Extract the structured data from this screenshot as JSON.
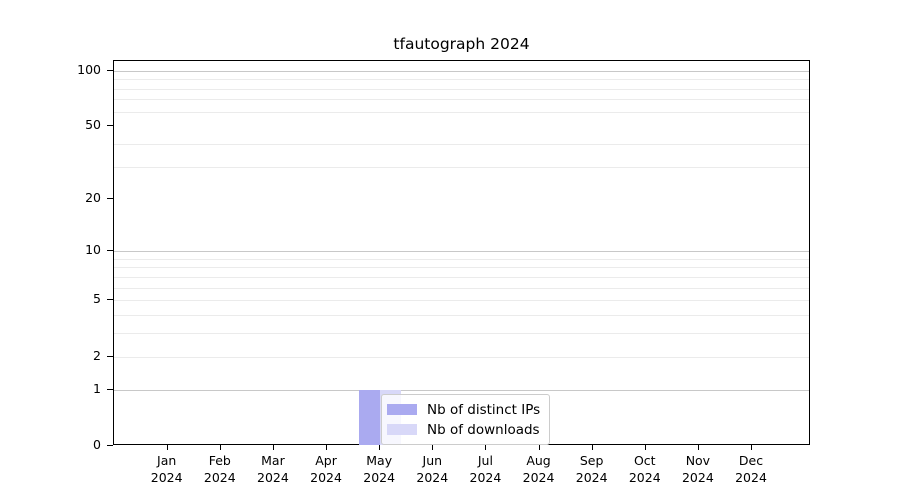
{
  "chart_data": {
    "type": "bar",
    "title": "tfautograph 2024",
    "categories": [
      "Jan 2024",
      "Feb 2024",
      "Mar 2024",
      "Apr 2024",
      "May 2024",
      "Jun 2024",
      "Jul 2024",
      "Aug 2024",
      "Sep 2024",
      "Oct 2024",
      "Nov 2024",
      "Dec 2024"
    ],
    "series": [
      {
        "name": "Nb of distinct IPs",
        "color": "#aaaaf0",
        "values": [
          0,
          0,
          0,
          0,
          1,
          0,
          0,
          0,
          0,
          0,
          0,
          0
        ]
      },
      {
        "name": "Nb of downloads",
        "color": "#d8d8f8",
        "values": [
          0,
          0,
          0,
          0,
          1,
          0,
          0,
          0,
          0,
          0,
          0,
          0
        ]
      }
    ],
    "xlabel": "",
    "ylabel": "",
    "yscale": "log1p",
    "ylim": [
      0,
      113
    ],
    "ytick_values": [
      0,
      1,
      2,
      5,
      10,
      20,
      50,
      100
    ],
    "ytick_labels": [
      "0",
      "1",
      "2",
      "5",
      "10",
      "20",
      "50",
      "100"
    ],
    "major_gridlines": [
      1,
      10,
      100
    ],
    "minor_gridlines": [
      2,
      3,
      4,
      5,
      6,
      7,
      8,
      9,
      30,
      40,
      60,
      70,
      80,
      90
    ],
    "grid": true,
    "legend": {
      "position": "inside-bottom-left-of-center",
      "items": [
        "Nb of distinct IPs",
        "Nb of downloads"
      ]
    },
    "colors": {
      "major_grid": "#c8c8c8",
      "minor_grid": "#ebebeb",
      "axis": "#000000",
      "legend_border": "#cccccc",
      "background": "#ffffff"
    }
  }
}
